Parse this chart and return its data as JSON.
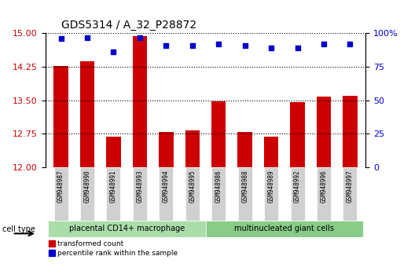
{
  "title": "GDS5314 / A_32_P28872",
  "samples": [
    "GSM948987",
    "GSM948990",
    "GSM948991",
    "GSM948993",
    "GSM948994",
    "GSM948995",
    "GSM948986",
    "GSM948988",
    "GSM948989",
    "GSM948992",
    "GSM948996",
    "GSM948997"
  ],
  "transformed_count": [
    14.27,
    14.37,
    12.68,
    14.93,
    12.78,
    12.82,
    13.47,
    12.78,
    12.68,
    13.45,
    13.58,
    13.59
  ],
  "percentile_rank": [
    96,
    97,
    86,
    97,
    91,
    91,
    92,
    91,
    89,
    89,
    92,
    92
  ],
  "cell_type_groups": [
    {
      "label": "placental CD14+ macrophage",
      "start": 0,
      "end": 6,
      "color": "#aaddaa"
    },
    {
      "label": "multinucleated giant cells",
      "start": 6,
      "end": 12,
      "color": "#88cc88"
    }
  ],
  "ylim_left": [
    12,
    15
  ],
  "ylim_right": [
    0,
    100
  ],
  "yticks_left": [
    12,
    12.75,
    13.5,
    14.25,
    15
  ],
  "yticks_right": [
    0,
    25,
    50,
    75,
    100
  ],
  "bar_color": "#cc0000",
  "scatter_color": "#0000cc",
  "grid_color": "#000000",
  "left_axis_color": "#cc0000",
  "right_axis_color": "#0000cc",
  "legend_bar_label": "transformed count",
  "legend_scatter_label": "percentile rank within the sample",
  "cell_type_label": "cell type"
}
